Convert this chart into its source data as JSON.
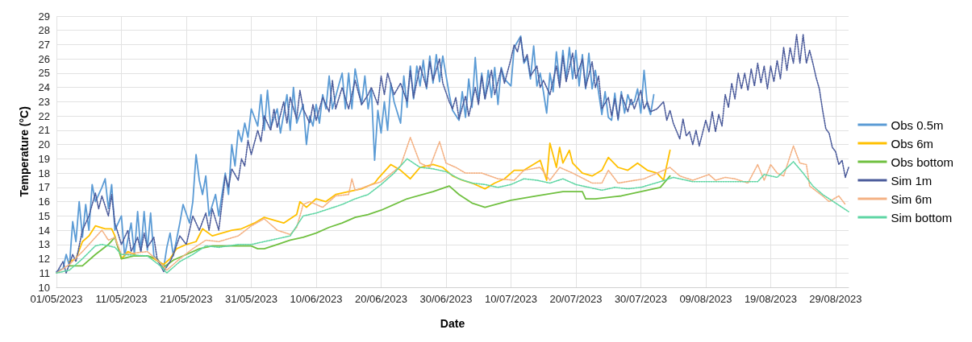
{
  "chart_data": {
    "type": "line",
    "xlabel": "Date",
    "ylabel": "Temperature (°C)",
    "xlim": [
      "2023-05-01",
      "2023-08-31"
    ],
    "xticks": [
      {
        "value": "2023-05-01",
        "label": "01/05/2023"
      },
      {
        "value": "2023-05-11",
        "label": "11/05/2023"
      },
      {
        "value": "2023-05-21",
        "label": "21/05/2023"
      },
      {
        "value": "2023-05-31",
        "label": "31/05/2023"
      },
      {
        "value": "2023-06-10",
        "label": "10/06/2023"
      },
      {
        "value": "2023-06-20",
        "label": "20/06/2023"
      },
      {
        "value": "2023-06-30",
        "label": "30/06/2023"
      },
      {
        "value": "2023-07-10",
        "label": "10/07/2023"
      },
      {
        "value": "2023-07-20",
        "label": "20/07/2023"
      },
      {
        "value": "2023-07-30",
        "label": "30/07/2023"
      },
      {
        "value": "2023-08-09",
        "label": "09/08/2023"
      },
      {
        "value": "2023-08-19",
        "label": "19/08/2023"
      },
      {
        "value": "2023-08-29",
        "label": "29/08/2023"
      }
    ],
    "ylim": [
      10,
      29
    ],
    "yticks": [
      10,
      11,
      12,
      13,
      14,
      15,
      16,
      17,
      18,
      19,
      20,
      21,
      22,
      23,
      24,
      25,
      26,
      27,
      28,
      29
    ],
    "grid": true,
    "legend": "right",
    "marker": "none",
    "series": [
      {
        "name": "Obs 0.5m",
        "color": "#5b9bd5",
        "line_style": "solid",
        "x": [
          "2023-05-01",
          "2023-05-02",
          "2023-05-02T12:00",
          "2023-05-03",
          "2023-05-03T12:00",
          "2023-05-04",
          "2023-05-04T12:00",
          "2023-05-05",
          "2023-05-05T12:00",
          "2023-05-06",
          "2023-05-06T12:00",
          "2023-05-07",
          "2023-05-08",
          "2023-05-08T12:00",
          "2023-05-09",
          "2023-05-09T12:00",
          "2023-05-10",
          "2023-05-11",
          "2023-05-11T12:00",
          "2023-05-12T12:00",
          "2023-05-13",
          "2023-05-13T12:00",
          "2023-05-14",
          "2023-05-14T12:00",
          "2023-05-15",
          "2023-05-15T12:00",
          "2023-05-16",
          "2023-05-17T12:00",
          "2023-05-18",
          "2023-05-18T12:00",
          "2023-05-19",
          "2023-05-20",
          "2023-05-20T12:00",
          "2023-05-21T12:00",
          "2023-05-22",
          "2023-05-22T12:00",
          "2023-05-23",
          "2023-05-23T12:00",
          "2023-05-24",
          "2023-05-24T12:00",
          "2023-05-25T12:00",
          "2023-05-26",
          "2023-05-27",
          "2023-05-27T12:00",
          "2023-05-28",
          "2023-05-28T12:00",
          "2023-05-29",
          "2023-05-29T12:00",
          "2023-05-30",
          "2023-05-30T12:00",
          "2023-05-31",
          "2023-06-01",
          "2023-06-01T12:00",
          "2023-06-02",
          "2023-06-02T12:00",
          "2023-06-03",
          "2023-06-04",
          "2023-06-04T12:00",
          "2023-06-05T12:00",
          "2023-06-06",
          "2023-06-06T12:00",
          "2023-06-07",
          "2023-06-08",
          "2023-06-08T12:00",
          "2023-06-09",
          "2023-06-09T12:00",
          "2023-06-10",
          "2023-06-10T12:00",
          "2023-06-11",
          "2023-06-11T12:00",
          "2023-06-12",
          "2023-06-12T12:00",
          "2023-06-13T12:00",
          "2023-06-14",
          "2023-06-14T12:00",
          "2023-06-15",
          "2023-06-15T12:00",
          "2023-06-16",
          "2023-06-17",
          "2023-06-17T12:00",
          "2023-06-18",
          "2023-06-18T12:00",
          "2023-06-19",
          "2023-06-19T12:00",
          "2023-06-20",
          "2023-06-20T12:00",
          "2023-06-21",
          "2023-06-21T12:00",
          "2023-06-22",
          "2023-06-23",
          "2023-06-23T12:00",
          "2023-06-24",
          "2023-06-24T12:00",
          "2023-06-25",
          "2023-06-25T12:00",
          "2023-06-26",
          "2023-06-26T12:00",
          "2023-06-27",
          "2023-06-27T12:00",
          "2023-06-28",
          "2023-06-28T12:00",
          "2023-06-29",
          "2023-06-29T12:00",
          "2023-06-30T12:00",
          "2023-07-01",
          "2023-07-02",
          "2023-07-02T12:00",
          "2023-07-03",
          "2023-07-03T12:00",
          "2023-07-04",
          "2023-07-04T12:00",
          "2023-07-05",
          "2023-07-05T12:00",
          "2023-07-06",
          "2023-07-06T12:00",
          "2023-07-07",
          "2023-07-07T12:00",
          "2023-07-08",
          "2023-07-08T12:00",
          "2023-07-09",
          "2023-07-10",
          "2023-07-10T12:00",
          "2023-07-11T12:00",
          "2023-07-12",
          "2023-07-12T12:00",
          "2023-07-13",
          "2023-07-13T12:00",
          "2023-07-14",
          "2023-07-14T12:00",
          "2023-07-15",
          "2023-07-15T12:00",
          "2023-07-16",
          "2023-07-16T12:00",
          "2023-07-17",
          "2023-07-17T12:00",
          "2023-07-18",
          "2023-07-18T12:00",
          "2023-07-19",
          "2023-07-19T12:00",
          "2023-07-20",
          "2023-07-20T12:00",
          "2023-07-21",
          "2023-07-21T12:00",
          "2023-07-22",
          "2023-07-22T12:00",
          "2023-07-23",
          "2023-07-24",
          "2023-07-24T12:00",
          "2023-07-25",
          "2023-07-25T12:00",
          "2023-07-26",
          "2023-07-26T12:00",
          "2023-07-27",
          "2023-07-27T12:00",
          "2023-07-28",
          "2023-07-28T12:00",
          "2023-07-29",
          "2023-07-29T12:00",
          "2023-07-30",
          "2023-07-30T12:00",
          "2023-07-31",
          "2023-07-31T12:00",
          "2023-08-01"
        ],
        "values": [
          11.1,
          11.3,
          12.3,
          11.5,
          14.6,
          13.2,
          16.0,
          13.5,
          15.8,
          14.0,
          17.2,
          16.0,
          17.0,
          17.6,
          15.5,
          17.2,
          14.0,
          15.0,
          12.2,
          14.5,
          12.3,
          15.3,
          12.5,
          15.3,
          12.6,
          15.2,
          12.2,
          11.3,
          12.8,
          13.8,
          12.2,
          14.5,
          15.8,
          14.5,
          16.0,
          19.3,
          17.5,
          16.5,
          17.8,
          15.0,
          16.5,
          15.0,
          18.0,
          16.5,
          20.0,
          18.5,
          21.0,
          20.2,
          21.5,
          20.5,
          22.5,
          21.3,
          23.5,
          21.0,
          23.8,
          21.2,
          22.5,
          20.8,
          23.5,
          21.0,
          24.0,
          21.5,
          22.8,
          20.0,
          22.0,
          21.3,
          22.8,
          21.5,
          23.5,
          22.5,
          24.8,
          22.5,
          24.2,
          25.0,
          22.5,
          25.0,
          22.5,
          25.3,
          22.8,
          24.8,
          22.5,
          23.9,
          18.9,
          22.4,
          20.8,
          23.0,
          21.0,
          24.3,
          23.0,
          21.5,
          24.8,
          22.6,
          25.5,
          23.2,
          25.5,
          24.1,
          25.9,
          23.9,
          26.2,
          24.3,
          26.3,
          24.4,
          26.2,
          23.5,
          22.4,
          21.7,
          23.7,
          21.9,
          24.6,
          22.6,
          26.1,
          23.0,
          25.0,
          23.2,
          25.2,
          23.3,
          25.4,
          22.8,
          25.4,
          24.6,
          24.1,
          26.8,
          27.6,
          25.7,
          26.1,
          24.6,
          26.9,
          24.1,
          25.0,
          23.7,
          22.2,
          25.0,
          23.7,
          26.5,
          24.3,
          26.6,
          24.6,
          26.8,
          24.6,
          26.6,
          24.1,
          26.3,
          23.9,
          26.4,
          23.9,
          25.2,
          22.1,
          23.7,
          21.9,
          21.7,
          23.6,
          21.7,
          23.7,
          22.2,
          23.5,
          22.8,
          23.0,
          23.9,
          22.2,
          25.2,
          22.8,
          22.1,
          23.5
        ]
      },
      {
        "name": "Obs 6m",
        "color": "#ffc000",
        "line_style": "solid",
        "x": [
          "2023-05-03",
          "2023-05-04",
          "2023-05-05",
          "2023-05-06",
          "2023-05-07",
          "2023-05-08T12:00",
          "2023-05-09T12:00",
          "2023-05-10",
          "2023-05-11",
          "2023-05-12",
          "2023-05-13T12:00",
          "2023-05-15",
          "2023-05-16",
          "2023-05-17T12:00",
          "2023-05-18T12:00",
          "2023-05-19T12:00",
          "2023-05-21",
          "2023-05-22T12:00",
          "2023-05-23T12:00",
          "2023-05-25",
          "2023-05-26T12:00",
          "2023-05-28",
          "2023-05-29T12:00",
          "2023-05-31T12:00",
          "2023-06-02",
          "2023-06-03T12:00",
          "2023-06-05",
          "2023-06-07",
          "2023-06-07T12:00",
          "2023-06-08T12:00",
          "2023-06-10",
          "2023-06-11T12:00",
          "2023-06-13",
          "2023-06-15",
          "2023-06-17",
          "2023-06-19",
          "2023-06-19T12:00",
          "2023-06-21T12:00",
          "2023-06-23",
          "2023-06-24T12:00",
          "2023-06-26",
          "2023-06-28",
          "2023-06-29T12:00",
          "2023-07-01",
          "2023-07-02T12:00",
          "2023-07-04",
          "2023-07-06",
          "2023-07-07T12:00",
          "2023-07-09",
          "2023-07-10T12:00",
          "2023-07-12",
          "2023-07-14T12:00",
          "2023-07-15T12:00",
          "2023-07-16",
          "2023-07-17",
          "2023-07-17T12:00",
          "2023-07-18",
          "2023-07-19",
          "2023-07-19T12:00",
          "2023-07-21",
          "2023-07-22T12:00",
          "2023-07-24",
          "2023-07-25",
          "2023-07-26T12:00",
          "2023-07-28",
          "2023-07-29T12:00",
          "2023-07-31",
          "2023-08-01T12:00",
          "2023-08-02T12:00",
          "2023-08-03T12:00"
        ],
        "values": [
          11.8,
          12.0,
          13.2,
          13.6,
          14.3,
          14.1,
          14.1,
          13.6,
          12.0,
          12.5,
          12.2,
          12.2,
          12.0,
          11.6,
          12.0,
          12.7,
          13.0,
          13.2,
          14.1,
          13.6,
          13.8,
          14.0,
          14.1,
          14.5,
          14.9,
          14.7,
          14.5,
          15.1,
          16.0,
          15.6,
          16.2,
          16.0,
          16.5,
          16.7,
          16.9,
          17.3,
          17.6,
          18.6,
          18.2,
          17.6,
          18.4,
          18.6,
          18.4,
          17.8,
          17.5,
          17.3,
          16.9,
          17.3,
          17.6,
          18.2,
          18.2,
          18.9,
          17.5,
          20.1,
          18.4,
          19.8,
          18.7,
          19.6,
          18.7,
          18.0,
          17.8,
          18.2,
          19.1,
          18.4,
          18.2,
          18.7,
          18.2,
          18.0,
          17.5,
          19.6
        ]
      },
      {
        "name": "Obs bottom",
        "color": "#70c040",
        "line_style": "solid",
        "x": [
          "2023-05-03",
          "2023-05-05",
          "2023-05-07",
          "2023-05-09",
          "2023-05-10",
          "2023-05-11",
          "2023-05-13",
          "2023-05-15",
          "2023-05-16T12:00",
          "2023-05-17T12:00",
          "2023-05-19",
          "2023-05-21",
          "2023-05-23",
          "2023-05-25",
          "2023-05-29",
          "2023-05-31",
          "2023-06-01",
          "2023-06-02",
          "2023-06-04",
          "2023-06-06",
          "2023-06-08",
          "2023-06-10",
          "2023-06-12",
          "2023-06-14",
          "2023-06-16",
          "2023-06-18",
          "2023-06-20",
          "2023-06-24",
          "2023-06-28",
          "2023-06-30T12:00",
          "2023-07-02",
          "2023-07-04",
          "2023-07-06",
          "2023-07-10",
          "2023-07-14",
          "2023-07-18",
          "2023-07-21",
          "2023-07-21T12:00",
          "2023-07-23",
          "2023-07-27",
          "2023-07-31",
          "2023-08-02",
          "2023-08-03T12:00"
        ],
        "values": [
          11.5,
          11.5,
          12.3,
          13.0,
          13.5,
          12.0,
          12.2,
          12.2,
          12.0,
          11.4,
          11.9,
          12.3,
          12.7,
          12.9,
          12.9,
          12.9,
          12.7,
          12.7,
          13.0,
          13.3,
          13.5,
          13.8,
          14.2,
          14.5,
          14.9,
          15.1,
          15.4,
          16.2,
          16.7,
          17.1,
          16.5,
          15.9,
          15.6,
          16.1,
          16.4,
          16.7,
          16.7,
          16.2,
          16.2,
          16.4,
          16.8,
          17.0,
          17.8
        ]
      },
      {
        "name": "Sim 1m",
        "color": "#4a5a9a",
        "line_style": "dotted",
        "x": [
          "2023-05-01",
          "2023-05-02",
          "2023-05-02T12:00",
          "2023-05-03T12:00",
          "2023-05-04",
          "2023-05-05",
          "2023-05-06",
          "2023-05-07",
          "2023-05-07T12:00",
          "2023-05-08",
          "2023-05-09",
          "2023-05-09T12:00",
          "2023-05-10",
          "2023-05-11",
          "2023-05-12",
          "2023-05-12T12:00",
          "2023-05-13T12:00",
          "2023-05-14",
          "2023-05-14T12:00",
          "2023-05-15",
          "2023-05-16",
          "2023-05-16T12:00",
          "2023-05-17T12:00",
          "2023-05-18T12:00",
          "2023-05-19",
          "2023-05-20",
          "2023-05-21",
          "2023-05-22",
          "2023-05-23",
          "2023-05-24",
          "2023-05-24T12:00",
          "2023-05-25",
          "2023-05-26",
          "2023-05-27",
          "2023-05-27T12:00",
          "2023-05-28",
          "2023-05-29",
          "2023-05-29T12:00",
          "2023-05-30",
          "2023-05-30T12:00",
          "2023-05-31",
          "2023-06-01",
          "2023-06-01T12:00",
          "2023-06-02",
          "2023-06-03",
          "2023-06-03T12:00",
          "2023-06-04",
          "2023-06-05",
          "2023-06-05T12:00",
          "2023-06-06",
          "2023-06-07",
          "2023-06-07T12:00",
          "2023-06-08",
          "2023-06-09",
          "2023-06-09T12:00",
          "2023-06-10",
          "2023-06-11",
          "2023-06-12",
          "2023-06-12T12:00",
          "2023-06-13",
          "2023-06-14",
          "2023-06-15",
          "2023-06-16",
          "2023-06-17",
          "2023-06-18",
          "2023-06-18T12:00",
          "2023-06-19T12:00",
          "2023-06-20",
          "2023-06-20T12:00",
          "2023-06-21",
          "2023-06-22",
          "2023-06-23",
          "2023-06-24",
          "2023-06-24T12:00",
          "2023-06-25",
          "2023-06-26",
          "2023-06-27",
          "2023-06-27T12:00",
          "2023-06-28",
          "2023-06-29",
          "2023-06-29T12:00",
          "2023-06-30T12:00",
          "2023-07-01",
          "2023-07-01T12:00",
          "2023-07-02",
          "2023-07-03",
          "2023-07-03T12:00",
          "2023-07-04T12:00",
          "2023-07-05",
          "2023-07-05T12:00",
          "2023-07-06",
          "2023-07-07",
          "2023-07-07T12:00",
          "2023-07-08T12:00",
          "2023-07-09",
          "2023-07-10",
          "2023-07-10T12:00",
          "2023-07-11",
          "2023-07-11T12:00",
          "2023-07-12",
          "2023-07-12T12:00",
          "2023-07-13",
          "2023-07-14",
          "2023-07-14T12:00",
          "2023-07-15",
          "2023-07-16",
          "2023-07-17",
          "2023-07-17T12:00",
          "2023-07-18",
          "2023-07-18T12:00",
          "2023-07-19T12:00",
          "2023-07-20",
          "2023-07-21",
          "2023-07-21T12:00",
          "2023-07-22T12:00",
          "2023-07-23",
          "2023-07-23T12:00",
          "2023-07-24",
          "2023-07-25",
          "2023-07-25T12:00",
          "2023-07-26",
          "2023-07-26T12:00",
          "2023-07-27",
          "2023-07-28",
          "2023-07-28T12:00",
          "2023-07-29",
          "2023-07-30",
          "2023-07-30T12:00",
          "2023-07-31",
          "2023-07-31T12:00",
          "2023-08-01T12:00",
          "2023-08-02T12:00",
          "2023-08-03",
          "2023-08-03T12:00",
          "2023-08-04",
          "2023-08-05",
          "2023-08-05T12:00",
          "2023-08-06",
          "2023-08-06T12:00",
          "2023-08-07",
          "2023-08-07T12:00",
          "2023-08-08",
          "2023-08-09",
          "2023-08-09T12:00",
          "2023-08-10",
          "2023-08-10T12:00",
          "2023-08-11",
          "2023-08-11T12:00",
          "2023-08-12",
          "2023-08-12T12:00",
          "2023-08-13",
          "2023-08-13T12:00",
          "2023-08-14",
          "2023-08-14T12:00",
          "2023-08-15",
          "2023-08-15T12:00",
          "2023-08-16",
          "2023-08-16T12:00",
          "2023-08-17",
          "2023-08-17T12:00",
          "2023-08-18",
          "2023-08-18T12:00",
          "2023-08-19",
          "2023-08-19T12:00",
          "2023-08-20",
          "2023-08-20T12:00",
          "2023-08-21",
          "2023-08-21T12:00",
          "2023-08-22",
          "2023-08-22T12:00",
          "2023-08-23",
          "2023-08-23T12:00",
          "2023-08-24",
          "2023-08-24T12:00",
          "2023-08-25",
          "2023-08-25T12:00",
          "2023-08-26",
          "2023-08-26T12:00",
          "2023-08-27",
          "2023-08-27T12:00",
          "2023-08-28",
          "2023-08-28T12:00",
          "2023-08-29",
          "2023-08-29T12:00",
          "2023-08-30",
          "2023-08-30T12:00",
          "2023-08-31"
        ],
        "values": [
          11.0,
          11.8,
          11.0,
          12.3,
          11.8,
          14.0,
          15.0,
          16.6,
          15.5,
          16.4,
          15.0,
          16.5,
          14.5,
          13.0,
          14.0,
          12.5,
          13.5,
          12.5,
          13.8,
          12.8,
          13.5,
          12.0,
          11.1,
          11.8,
          12.3,
          13.6,
          13.0,
          15.0,
          14.0,
          15.2,
          14.0,
          15.5,
          14.0,
          17.8,
          17.0,
          18.3,
          17.5,
          19.0,
          18.5,
          20.3,
          19.3,
          21.0,
          20.2,
          22.0,
          21.0,
          22.5,
          21.2,
          23.0,
          21.5,
          23.3,
          21.8,
          23.8,
          22.5,
          21.5,
          22.8,
          21.7,
          23.3,
          22.3,
          24.5,
          22.5,
          24.0,
          22.5,
          24.5,
          22.8,
          23.5,
          24.0,
          22.8,
          24.8,
          23.5,
          25.0,
          23.5,
          24.3,
          23.0,
          25.2,
          23.3,
          25.5,
          24.0,
          25.8,
          24.5,
          26.0,
          24.3,
          23.0,
          22.5,
          23.3,
          21.8,
          23.4,
          22.0,
          24.0,
          22.8,
          24.8,
          23.2,
          25.2,
          23.5,
          25.3,
          24.3,
          26.0,
          27.0,
          26.5,
          27.5,
          25.8,
          26.3,
          24.8,
          25.5,
          24.0,
          24.5,
          23.5,
          25.5,
          24.0,
          26.2,
          24.4,
          26.4,
          24.6,
          26.0,
          24.0,
          25.8,
          24.0,
          24.8,
          22.5,
          23.3,
          22.0,
          23.2,
          21.8,
          23.5,
          22.3,
          23.2,
          22.5,
          23.8,
          22.5,
          23.0,
          22.3,
          22.5,
          23.0,
          21.7,
          22.4,
          21.5,
          20.4,
          21.8,
          20.6,
          20.9,
          20.0,
          21.0,
          19.9,
          21.7,
          20.9,
          22.3,
          20.9,
          22.1,
          21.3,
          23.5,
          22.6,
          24.3,
          23.2,
          25.0,
          23.9,
          25.0,
          23.8,
          25.3,
          24.1,
          25.7,
          24.3,
          25.5,
          23.9,
          25.5,
          24.4,
          25.9,
          24.6,
          26.8,
          25.2,
          26.8,
          25.7,
          27.7,
          25.7,
          27.7,
          25.7,
          26.6,
          25.7,
          24.7,
          23.9,
          22.4,
          21.1,
          20.8,
          19.8,
          19.5,
          18.6,
          18.9,
          17.7,
          18.4
        ]
      },
      {
        "name": "Sim 6m",
        "color": "#f4b183",
        "line_style": "dotted",
        "x": [
          "2023-05-01",
          "2023-05-03",
          "2023-05-05",
          "2023-05-07",
          "2023-05-08",
          "2023-05-09",
          "2023-05-10",
          "2023-05-11",
          "2023-05-15",
          "2023-05-17",
          "2023-05-18",
          "2023-05-20",
          "2023-05-22",
          "2023-05-24",
          "2023-05-26",
          "2023-05-29",
          "2023-05-31",
          "2023-06-02",
          "2023-06-04",
          "2023-06-06",
          "2023-06-07",
          "2023-06-08",
          "2023-06-09",
          "2023-06-11",
          "2023-06-13",
          "2023-06-15",
          "2023-06-15T12:00",
          "2023-06-16",
          "2023-06-18",
          "2023-06-20",
          "2023-06-23",
          "2023-06-24T12:00",
          "2023-06-26",
          "2023-06-27T12:00",
          "2023-06-29",
          "2023-06-30",
          "2023-07-01T12:00",
          "2023-07-03",
          "2023-07-05T12:00",
          "2023-07-08",
          "2023-07-10T12:00",
          "2023-07-12",
          "2023-07-14T12:00",
          "2023-07-16",
          "2023-07-17T12:00",
          "2023-07-19T12:00",
          "2023-07-22T12:00",
          "2023-07-24",
          "2023-07-25",
          "2023-07-26T12:00",
          "2023-07-30T12:00",
          "2023-08-03T12:00",
          "2023-08-05",
          "2023-08-07",
          "2023-08-09T12:00",
          "2023-08-10T12:00",
          "2023-08-12",
          "2023-08-13T12:00",
          "2023-08-15T12:00",
          "2023-08-17",
          "2023-08-18",
          "2023-08-19",
          "2023-08-20",
          "2023-08-21",
          "2023-08-22T12:00",
          "2023-08-23T12:00",
          "2023-08-24T12:00",
          "2023-08-25",
          "2023-08-27",
          "2023-08-28",
          "2023-08-29T12:00",
          "2023-08-30T12:00"
        ],
        "values": [
          11.0,
          11.6,
          12.5,
          13.5,
          14.0,
          13.3,
          13.5,
          12.3,
          12.5,
          11.7,
          11.2,
          12.0,
          12.7,
          13.3,
          13.2,
          13.6,
          14.3,
          14.8,
          14.0,
          13.7,
          14.2,
          15.8,
          16.0,
          15.6,
          16.4,
          16.5,
          17.6,
          16.8,
          17.1,
          17.4,
          18.5,
          20.5,
          18.7,
          18.4,
          20.2,
          18.7,
          18.4,
          18.0,
          18.0,
          17.6,
          17.5,
          18.2,
          18.4,
          17.5,
          18.4,
          18.0,
          17.3,
          17.3,
          18.2,
          17.3,
          17.6,
          18.4,
          17.8,
          17.5,
          17.9,
          17.5,
          17.7,
          17.6,
          17.3,
          18.6,
          17.5,
          18.6,
          18.0,
          17.8,
          19.9,
          18.7,
          18.6,
          17.1,
          16.4,
          16.0,
          16.4,
          15.8
        ]
      },
      {
        "name": "Sim bottom",
        "color": "#5fd6a4",
        "line_style": "dotted",
        "x": [
          "2023-05-01",
          "2023-05-03",
          "2023-05-05",
          "2023-05-07",
          "2023-05-08",
          "2023-05-10",
          "2023-05-11",
          "2023-05-15",
          "2023-05-17",
          "2023-05-18",
          "2023-05-20",
          "2023-05-22",
          "2023-05-24",
          "2023-05-26",
          "2023-05-29",
          "2023-05-31",
          "2023-06-02",
          "2023-06-04",
          "2023-06-06",
          "2023-06-08",
          "2023-06-10",
          "2023-06-12",
          "2023-06-14",
          "2023-06-16",
          "2023-06-18",
          "2023-06-20",
          "2023-06-22",
          "2023-06-24",
          "2023-06-26",
          "2023-06-28",
          "2023-06-30",
          "2023-07-02",
          "2023-07-04",
          "2023-07-06",
          "2023-07-08",
          "2023-07-10",
          "2023-07-12",
          "2023-07-14",
          "2023-07-16",
          "2023-07-18",
          "2023-07-20",
          "2023-07-22",
          "2023-07-24",
          "2023-07-26",
          "2023-07-28",
          "2023-07-30",
          "2023-08-02",
          "2023-08-04",
          "2023-08-07",
          "2023-08-12",
          "2023-08-17",
          "2023-08-18",
          "2023-08-20",
          "2023-08-22T12:00",
          "2023-08-24",
          "2023-08-25T12:00",
          "2023-08-27",
          "2023-08-29",
          "2023-08-31"
        ],
        "values": [
          11.0,
          11.2,
          12.0,
          12.9,
          13.0,
          12.8,
          12.3,
          12.2,
          11.5,
          11.0,
          11.8,
          12.3,
          12.9,
          12.8,
          13.0,
          13.0,
          13.2,
          13.4,
          13.6,
          15.0,
          15.2,
          15.5,
          15.8,
          16.2,
          16.5,
          17.2,
          18.0,
          19.0,
          18.4,
          18.3,
          18.1,
          17.6,
          17.3,
          17.2,
          17.0,
          17.2,
          17.6,
          17.5,
          17.3,
          17.6,
          17.2,
          17.0,
          16.8,
          17.0,
          16.9,
          17.0,
          17.4,
          17.7,
          17.4,
          17.4,
          17.4,
          17.9,
          17.7,
          18.8,
          18.0,
          17.1,
          16.5,
          15.9,
          15.3
        ]
      }
    ]
  }
}
